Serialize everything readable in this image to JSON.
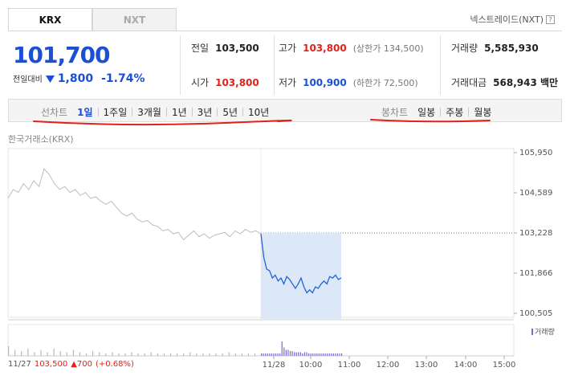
{
  "exchange_tabs": [
    {
      "label": "KRX",
      "active": true
    },
    {
      "label": "NXT",
      "active": false
    }
  ],
  "nxt_link": {
    "label": "넥스트레이드(NXT)",
    "help_icon": "question-box-icon"
  },
  "quote": {
    "price": "101,700",
    "change_label": "전일대비",
    "change_direction": "down",
    "change_value": "1,800",
    "change_percent": "-1.74%"
  },
  "stats": {
    "prev_close": {
      "label": "전일",
      "value": "103,500"
    },
    "high": {
      "label": "고가",
      "value": "103,800",
      "extra": "(상한가 134,500)"
    },
    "volume": {
      "label": "거래량",
      "value": "5,585,930"
    },
    "open": {
      "label": "시가",
      "value": "103,800"
    },
    "low": {
      "label": "저가",
      "value": "100,900",
      "extra": "(하한가 72,500)"
    },
    "trade_value": {
      "label": "거래대금",
      "value": "568,943 백만"
    }
  },
  "line_chart_controls": {
    "label": "선차트",
    "items": [
      {
        "label": "1일",
        "selected": true
      },
      {
        "label": "1주일",
        "selected": false
      },
      {
        "label": "3개월",
        "selected": false
      },
      {
        "label": "1년",
        "selected": false
      },
      {
        "label": "3년",
        "selected": false
      },
      {
        "label": "5년",
        "selected": false
      },
      {
        "label": "10년",
        "selected": false
      }
    ]
  },
  "candle_chart_controls": {
    "label": "봉차트",
    "items": [
      {
        "label": "일봉"
      },
      {
        "label": "주봉"
      },
      {
        "label": "월봉"
      }
    ]
  },
  "chart_source": "한국거래소(KRX)",
  "volume_legend": "거래량",
  "footer": {
    "date": "11/27",
    "close": "103,500",
    "change": "▲700",
    "pct": "(+0.68%)"
  },
  "colors": {
    "up": "#e0221b",
    "down": "#1a4fd6",
    "prev_day_line": "#bdbdbd",
    "today_line": "#1e63d6",
    "today_fill": "#dce8f8",
    "annotation_red": "#e0221b"
  },
  "chart_data": {
    "type": "line",
    "y_ticks": [
      "105,950",
      "104,589",
      "103,228",
      "101,866",
      "100,505"
    ],
    "y_range": [
      100505,
      105950
    ],
    "x_ticks": [
      "11/28",
      "10:00",
      "11:00",
      "12:00",
      "13:00",
      "14:00",
      "15:00"
    ],
    "reference_price": 103228,
    "series": [
      {
        "values": [
          104400,
          104700,
          104600,
          104900,
          104700,
          105000,
          104800,
          105400,
          105200,
          104900,
          104700,
          104800,
          104600,
          104700,
          104500,
          104600,
          104400,
          104450,
          104300,
          104200,
          104300,
          104100,
          103900,
          103800,
          103900,
          103700,
          103600,
          103650,
          103500,
          103450,
          103300,
          103350,
          103200,
          103250,
          103000,
          103150,
          103300,
          103100,
          103200,
          103050,
          103150,
          103200,
          103250,
          103100,
          103300,
          103200,
          103350,
          103250,
          103300,
          103200
        ]
      },
      {
        "values": [
          103200,
          102400,
          102000,
          101950,
          101700,
          101800,
          101600,
          101700,
          101500,
          101750,
          101650,
          101500,
          101350,
          101500,
          101700,
          101400,
          101200,
          101300,
          101200,
          101400,
          101350,
          101500,
          101600,
          101500,
          101750,
          101700,
          101800,
          101650,
          101700
        ]
      }
    ],
    "volume": {
      "values": [
        8,
        5,
        4,
        6,
        3,
        5,
        3,
        6,
        4,
        3,
        5,
        3,
        2,
        4,
        3,
        2,
        3,
        2,
        2,
        3,
        2,
        2,
        3,
        2,
        2,
        2,
        2,
        2,
        3,
        2,
        2,
        2,
        2,
        2,
        3,
        2,
        2,
        2,
        2,
        2,
        2,
        2,
        2,
        2,
        2,
        2,
        2,
        2,
        2,
        2,
        12,
        7,
        5,
        5,
        4,
        4,
        3,
        3,
        3,
        3,
        2,
        3,
        3,
        2,
        2,
        2,
        2,
        2,
        2,
        2,
        2,
        2,
        2,
        2,
        2,
        2,
        2,
        2,
        2,
        2
      ]
    }
  }
}
